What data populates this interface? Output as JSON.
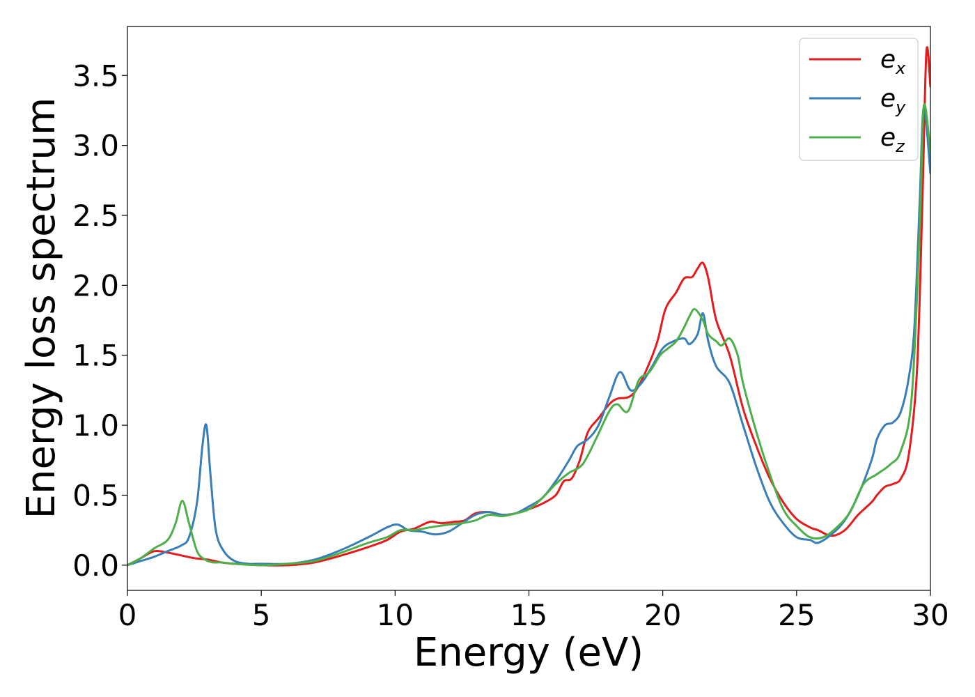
{
  "chart_data": {
    "type": "line",
    "title": "",
    "xlabel": "Energy (eV)",
    "ylabel": "Energy loss spectrum",
    "xlim": [
      0,
      30
    ],
    "ylim": [
      -0.18,
      3.85
    ],
    "xticks": [
      0,
      5,
      10,
      15,
      20,
      25,
      30
    ],
    "xtick_labels": [
      "0",
      "5",
      "10",
      "15",
      "20",
      "25",
      "30"
    ],
    "yticks": [
      0.0,
      0.5,
      1.0,
      1.5,
      2.0,
      2.5,
      3.0,
      3.5
    ],
    "ytick_labels": [
      "0.0",
      "0.5",
      "1.0",
      "1.5",
      "2.0",
      "2.5",
      "3.0",
      "3.5"
    ],
    "grid": false,
    "legend_position": "top-right",
    "series": [
      {
        "name": "e_x",
        "legend_base": "e",
        "legend_sub": "x",
        "color": "#e41a1c",
        "x": [
          0,
          0.5,
          1.0,
          1.5,
          2.0,
          2.5,
          3.0,
          3.5,
          4.0,
          5.0,
          6.0,
          7.0,
          8.0,
          9.0,
          9.7,
          10.2,
          10.7,
          11.3,
          11.7,
          12.2,
          12.6,
          13.0,
          13.5,
          14.0,
          14.5,
          15.0,
          15.5,
          16.0,
          16.3,
          16.6,
          16.9,
          17.2,
          17.6,
          18.0,
          18.3,
          18.7,
          19.0,
          19.4,
          19.8,
          20.1,
          20.5,
          20.8,
          21.1,
          21.3,
          21.5,
          21.7,
          22.0,
          22.5,
          23.0,
          23.5,
          24.0,
          24.5,
          25.0,
          25.5,
          25.8,
          26.3,
          26.8,
          27.3,
          27.8,
          28.0,
          28.3,
          28.6,
          28.9,
          29.2,
          29.5,
          29.7,
          29.85,
          30.0
        ],
        "y": [
          0,
          0.05,
          0.1,
          0.09,
          0.07,
          0.05,
          0.04,
          0.02,
          0.01,
          0.0,
          0.0,
          0.02,
          0.07,
          0.13,
          0.18,
          0.24,
          0.26,
          0.31,
          0.3,
          0.31,
          0.32,
          0.37,
          0.38,
          0.36,
          0.37,
          0.4,
          0.44,
          0.5,
          0.6,
          0.62,
          0.75,
          0.95,
          1.05,
          1.15,
          1.19,
          1.2,
          1.25,
          1.4,
          1.6,
          1.83,
          1.95,
          2.05,
          2.06,
          2.12,
          2.16,
          2.05,
          1.75,
          1.5,
          1.12,
          0.85,
          0.62,
          0.45,
          0.33,
          0.27,
          0.25,
          0.21,
          0.25,
          0.36,
          0.45,
          0.5,
          0.56,
          0.58,
          0.62,
          0.8,
          1.4,
          2.6,
          3.67,
          3.42
        ]
      },
      {
        "name": "e_y",
        "legend_base": "e",
        "legend_sub": "y",
        "color": "#377eb8",
        "x": [
          0,
          0.5,
          1.0,
          1.5,
          2.0,
          2.3,
          2.6,
          2.8,
          2.95,
          3.1,
          3.3,
          3.6,
          4.0,
          4.5,
          5.0,
          6.0,
          7.0,
          8.0,
          9.0,
          9.7,
          10.1,
          10.5,
          11.0,
          11.5,
          12.0,
          12.5,
          13.0,
          13.5,
          14.0,
          14.5,
          15.0,
          15.5,
          16.0,
          16.5,
          16.8,
          17.2,
          17.6,
          18.0,
          18.4,
          18.8,
          19.2,
          19.6,
          20.0,
          20.4,
          20.8,
          21.0,
          21.3,
          21.5,
          21.7,
          22.0,
          22.5,
          23.0,
          23.5,
          24.0,
          24.5,
          25.0,
          25.5,
          25.8,
          26.3,
          26.8,
          27.3,
          27.8,
          28.0,
          28.3,
          28.6,
          28.9,
          29.2,
          29.4,
          29.6,
          29.75,
          30.0
        ],
        "y": [
          0,
          0.03,
          0.06,
          0.1,
          0.14,
          0.2,
          0.45,
          0.85,
          1.0,
          0.65,
          0.25,
          0.1,
          0.03,
          0.01,
          0.01,
          0.01,
          0.04,
          0.11,
          0.2,
          0.27,
          0.29,
          0.25,
          0.24,
          0.22,
          0.24,
          0.3,
          0.36,
          0.38,
          0.36,
          0.37,
          0.42,
          0.48,
          0.6,
          0.75,
          0.85,
          0.9,
          1.0,
          1.2,
          1.38,
          1.25,
          1.3,
          1.42,
          1.55,
          1.6,
          1.62,
          1.58,
          1.65,
          1.8,
          1.6,
          1.42,
          1.3,
          1.0,
          0.7,
          0.45,
          0.3,
          0.2,
          0.18,
          0.16,
          0.22,
          0.32,
          0.5,
          0.75,
          0.9,
          1.0,
          1.02,
          1.1,
          1.35,
          1.7,
          2.6,
          3.27,
          2.8
        ]
      },
      {
        "name": "e_z",
        "legend_base": "e",
        "legend_sub": "z",
        "color": "#4daf4a",
        "x": [
          0,
          0.5,
          1.0,
          1.5,
          1.8,
          2.05,
          2.3,
          2.6,
          2.9,
          3.2,
          3.5,
          4.0,
          5.0,
          6.0,
          7.0,
          8.0,
          9.0,
          9.7,
          10.2,
          10.7,
          11.3,
          12.0,
          12.5,
          13.0,
          13.5,
          14.0,
          14.5,
          15.0,
          15.5,
          16.0,
          16.5,
          17.0,
          17.5,
          18.0,
          18.3,
          18.7,
          19.1,
          19.5,
          19.9,
          20.2,
          20.5,
          20.8,
          21.0,
          21.2,
          21.5,
          21.7,
          22.0,
          22.2,
          22.5,
          22.8,
          23.0,
          23.5,
          24.0,
          24.5,
          25.0,
          25.5,
          26.0,
          26.5,
          27.0,
          27.5,
          28.0,
          28.5,
          28.9,
          29.3,
          29.6,
          29.75,
          30.0
        ],
        "y": [
          0,
          0.05,
          0.12,
          0.18,
          0.3,
          0.46,
          0.3,
          0.1,
          0.04,
          0.02,
          0.02,
          0.01,
          0.0,
          0.01,
          0.03,
          0.09,
          0.16,
          0.2,
          0.25,
          0.25,
          0.27,
          0.29,
          0.3,
          0.32,
          0.36,
          0.35,
          0.37,
          0.4,
          0.48,
          0.58,
          0.66,
          0.72,
          0.9,
          1.1,
          1.15,
          1.1,
          1.32,
          1.38,
          1.5,
          1.55,
          1.6,
          1.7,
          1.78,
          1.83,
          1.75,
          1.65,
          1.6,
          1.57,
          1.62,
          1.5,
          1.3,
          0.95,
          0.65,
          0.4,
          0.28,
          0.2,
          0.2,
          0.27,
          0.38,
          0.58,
          0.65,
          0.72,
          0.82,
          1.2,
          2.4,
          3.28,
          2.95
        ]
      }
    ]
  }
}
